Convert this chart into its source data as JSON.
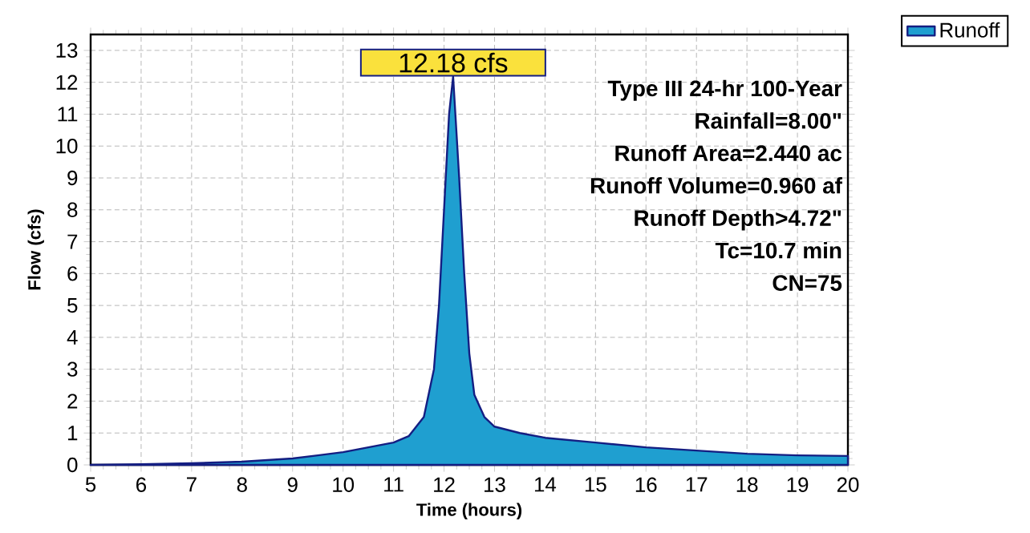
{
  "chart_data": {
    "type": "area",
    "xlabel": "Time  (hours)",
    "ylabel": "Flow  (cfs)",
    "x": [
      5,
      6,
      7,
      8,
      8.5,
      9,
      9.5,
      10,
      10.5,
      11,
      11.3,
      11.6,
      11.8,
      11.9,
      12.0,
      12.1,
      12.18,
      12.3,
      12.4,
      12.5,
      12.6,
      12.8,
      13,
      13.5,
      14,
      15,
      16,
      17,
      18,
      19,
      20
    ],
    "series": [
      {
        "name": "Runoff",
        "color": "#1f9fd0",
        "values": [
          0,
          0.02,
          0.05,
          0.1,
          0.15,
          0.2,
          0.3,
          0.4,
          0.55,
          0.7,
          0.9,
          1.5,
          3,
          5,
          8,
          11,
          12.18,
          9,
          6,
          3.5,
          2.2,
          1.5,
          1.2,
          1.0,
          0.85,
          0.7,
          0.55,
          0.45,
          0.35,
          0.3,
          0.28
        ]
      }
    ],
    "xlim": [
      5,
      20
    ],
    "ylim": [
      0,
      13.5
    ],
    "xticks": [
      5,
      6,
      7,
      8,
      9,
      10,
      11,
      12,
      13,
      14,
      15,
      16,
      17,
      18,
      19,
      20
    ],
    "yticks": [
      0,
      1,
      2,
      3,
      4,
      5,
      6,
      7,
      8,
      9,
      10,
      11,
      12,
      13
    ],
    "grid": true,
    "legend": "top right",
    "annotations": [
      {
        "text": "12.18 cfs",
        "x": 12.18,
        "y": 12.18
      },
      "Type III 24-hr 100-Year",
      "Rainfall=8.00\"",
      "Runoff Area=2.440 ac",
      "Runoff Volume=0.960 af",
      "Runoff Depth>4.72\"",
      "Tc=10.7 min",
      "CN=75"
    ]
  }
}
